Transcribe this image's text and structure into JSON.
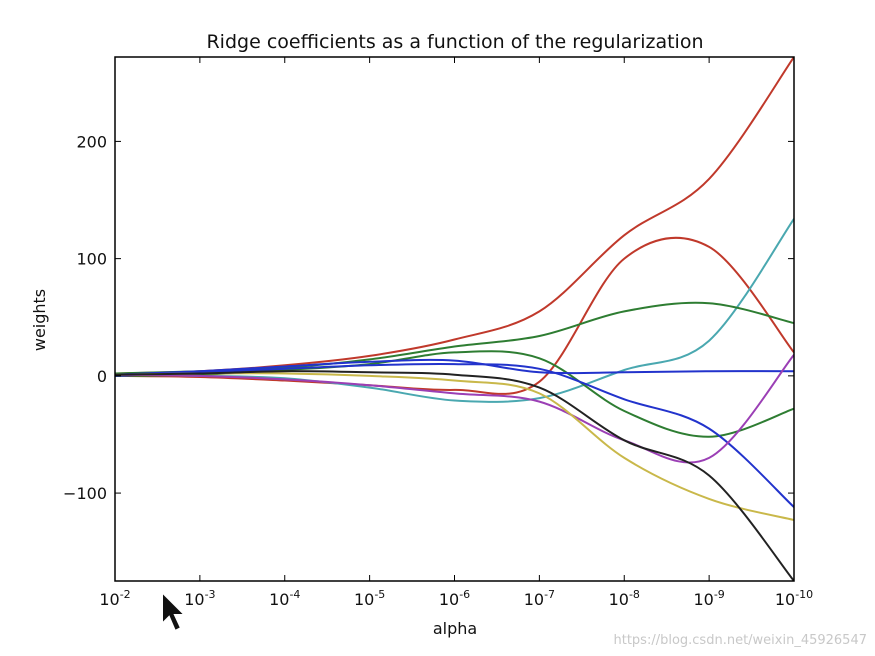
{
  "chart_data": {
    "type": "line",
    "title": "Ridge coefficients as a function of the regularization",
    "xlabel": "alpha",
    "ylabel": "weights",
    "x_scale": "log",
    "x_reversed": true,
    "xlim": [
      0.01,
      1e-10
    ],
    "ylim": [
      -175,
      272
    ],
    "x_ticks": [
      {
        "base": "10",
        "exp": "-2",
        "value": 0.01
      },
      {
        "base": "10",
        "exp": "-3",
        "value": 0.001
      },
      {
        "base": "10",
        "exp": "-4",
        "value": 0.0001
      },
      {
        "base": "10",
        "exp": "-5",
        "value": 1e-05
      },
      {
        "base": "10",
        "exp": "-6",
        "value": 1e-06
      },
      {
        "base": "10",
        "exp": "-7",
        "value": 1e-07
      },
      {
        "base": "10",
        "exp": "-8",
        "value": 1e-08
      },
      {
        "base": "10",
        "exp": "-9",
        "value": 1e-09
      },
      {
        "base": "10",
        "exp": "-10",
        "value": 1e-10
      }
    ],
    "y_ticks": [
      {
        "label": "200",
        "value": 200
      },
      {
        "label": "100",
        "value": 100
      },
      {
        "label": "0",
        "value": 0
      },
      {
        "label": "−100",
        "value": -100
      }
    ],
    "grid": false,
    "legend": "none",
    "x": [
      0.01,
      0.001,
      0.0001,
      1e-05,
      1e-06,
      1e-07,
      1e-08,
      1e-09,
      1e-10
    ],
    "series": [
      {
        "color": "#c0392b",
        "values": [
          2,
          4,
          9,
          17,
          31,
          55,
          120,
          168,
          272
        ]
      },
      {
        "color": "#c0392b",
        "values": [
          0,
          -1,
          -4,
          -8,
          -12,
          -5,
          100,
          110,
          20
        ]
      },
      {
        "color": "#4aa8b0",
        "values": [
          1,
          0,
          -2,
          -10,
          -21,
          -19,
          5,
          30,
          134
        ]
      },
      {
        "color": "#2e7d32",
        "values": [
          2,
          4,
          7,
          14,
          25,
          34,
          55,
          62,
          45
        ]
      },
      {
        "color": "#2e7d32",
        "values": [
          0,
          1,
          5,
          10,
          20,
          15,
          -30,
          -52,
          -28
        ]
      },
      {
        "color": "#2233cc",
        "values": [
          1,
          4,
          8,
          12,
          13,
          3,
          3,
          4,
          4
        ]
      },
      {
        "color": "#2233cc",
        "values": [
          0,
          3,
          6,
          9,
          10,
          6,
          -20,
          -45,
          -112
        ]
      },
      {
        "color": "#9b3fb5",
        "values": [
          1,
          0,
          -3,
          -8,
          -15,
          -22,
          -55,
          -70,
          18
        ]
      },
      {
        "color": "#c9b84a",
        "values": [
          1,
          2,
          2,
          0,
          -4,
          -15,
          -70,
          -105,
          -123
        ]
      },
      {
        "color": "#222222",
        "values": [
          1,
          2,
          4,
          3,
          1,
          -10,
          -55,
          -85,
          -175
        ]
      }
    ]
  },
  "watermark": "https://blog.csdn.net/weixin_45926547"
}
